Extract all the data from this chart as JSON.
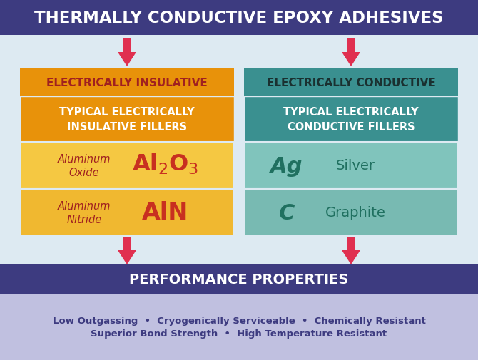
{
  "title": "THERMALLY CONDUCTIVE EPOXY ADHESIVES",
  "title_bg": "#3d3b80",
  "title_color": "#ffffff",
  "background": "#ddeaf2",
  "left_header_text": "ELECTRICALLY INSULATIVE",
  "left_header_bg": "#e8920a",
  "left_header_color": "#a02020",
  "left_subheader_text": "TYPICAL ELECTRICALLY\nINSULATIVE FILLERS",
  "left_subheader_bg": "#e8920a",
  "left_subheader_color": "#ffffff",
  "left_row1_label": "Aluminum\nOxide",
  "left_row1_bg": "#f5c842",
  "left_row1_label_color": "#a02020",
  "left_row1_formula_color": "#c83020",
  "left_row2_label": "Aluminum\nNitride",
  "left_row2_formula": "AlN",
  "left_row2_bg": "#f0b830",
  "left_row2_label_color": "#a02020",
  "left_row2_formula_color": "#c83020",
  "right_header_text": "ELECTRICALLY CONDUCTIVE",
  "right_header_bg": "#3a9090",
  "right_header_color": "#1a3030",
  "right_subheader_text": "TYPICAL ELECTRICALLY\nCONDUCTIVE FILLERS",
  "right_subheader_bg": "#3a9090",
  "right_subheader_color": "#ffffff",
  "right_row1_symbol": "Ag",
  "right_row1_label": "Silver",
  "right_row1_bg": "#80c4bc",
  "right_row1_color": "#207060",
  "right_row2_symbol": "C",
  "right_row2_label": "Graphite",
  "right_row2_bg": "#78bab2",
  "right_row2_color": "#207060",
  "perf_bg": "#3d3b80",
  "perf_text": "PERFORMANCE PROPERTIES",
  "perf_color": "#ffffff",
  "bottom_bg": "#c0c0e0",
  "bottom_text_line1": "Low Outgassing  •  Cryogenically Serviceable  •  Chemically Resistant",
  "bottom_text_line2": "Superior Bond Strength  •  High Temperature Resistant",
  "bottom_color": "#3d3b80",
  "arrow_color": "#e03050"
}
